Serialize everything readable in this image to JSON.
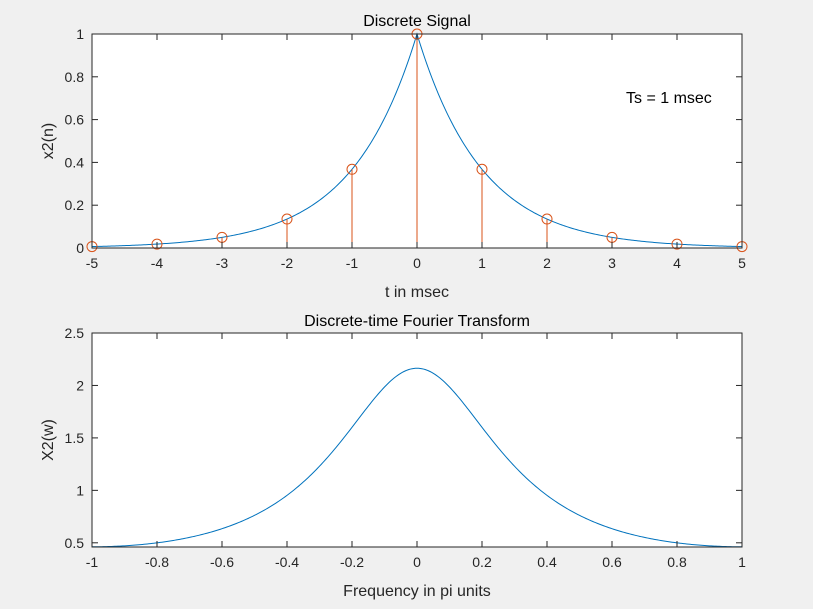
{
  "chart_data": [
    {
      "type": "line",
      "title": "Discrete Signal",
      "xlabel": "t in msec",
      "ylabel": "x2(n)",
      "annotation": "Ts = 1 msec",
      "xlim": [
        -5,
        5
      ],
      "ylim": [
        0,
        1
      ],
      "xticks": [
        "-5",
        "-4",
        "-3",
        "-2",
        "-1",
        "0",
        "1",
        "2",
        "3",
        "4",
        "5"
      ],
      "yticks": [
        "0",
        "0.2",
        "0.4",
        "0.6",
        "0.8",
        "1"
      ],
      "grid": false,
      "series": [
        {
          "style": "line",
          "color": "#0072bd",
          "x": [
            -5,
            -4.5,
            -4,
            -3.5,
            -3,
            -2.5,
            -2,
            -1.5,
            -1,
            -0.75,
            -0.5,
            -0.25,
            0,
            0.25,
            0.5,
            0.75,
            1,
            1.5,
            2,
            2.5,
            3,
            3.5,
            4,
            4.5,
            5
          ],
          "y": [
            0.0067,
            0.0111,
            0.0183,
            0.0302,
            0.0498,
            0.0821,
            0.1353,
            0.2231,
            0.3679,
            0.4724,
            0.6065,
            0.7788,
            1.0,
            0.7788,
            0.6065,
            0.4724,
            0.3679,
            0.2231,
            0.1353,
            0.0821,
            0.0498,
            0.0302,
            0.0183,
            0.0111,
            0.0067
          ]
        },
        {
          "style": "stem",
          "color": "#d95319",
          "x": [
            -5,
            -4,
            -3,
            -2,
            -1,
            0,
            1,
            2,
            3,
            4,
            5
          ],
          "y": [
            0.0067,
            0.0183,
            0.0498,
            0.1353,
            0.3679,
            1.0,
            0.3679,
            0.1353,
            0.0498,
            0.0183,
            0.0067
          ]
        }
      ]
    },
    {
      "type": "line",
      "title": "Discrete-time Fourier Transform",
      "xlabel": "Frequency in pi units",
      "ylabel": "X2(w)",
      "xlim": [
        -1,
        1
      ],
      "ylim": [
        0.46,
        2.5
      ],
      "xticks": [
        "-1",
        "-0.8",
        "-0.6",
        "-0.4",
        "-0.2",
        "0",
        "0.2",
        "0.4",
        "0.6",
        "0.8",
        "1"
      ],
      "yticks": [
        "0.5",
        "1",
        "1.5",
        "2",
        "2.5"
      ],
      "ytick_values": [
        0.5,
        1,
        1.5,
        2,
        2.5
      ],
      "grid": false,
      "series": [
        {
          "style": "line",
          "color": "#0072bd",
          "x": [
            -1,
            -0.9,
            -0.8,
            -0.7,
            -0.6,
            -0.5,
            -0.4,
            -0.3,
            -0.2,
            -0.1,
            0,
            0.1,
            0.2,
            0.3,
            0.4,
            0.5,
            0.6,
            0.7,
            0.8,
            0.9,
            1
          ],
          "y": [
            0.466,
            0.479,
            0.522,
            0.598,
            0.715,
            0.882,
            1.109,
            1.396,
            1.713,
            1.999,
            2.164,
            1.999,
            1.713,
            1.396,
            1.109,
            0.882,
            0.715,
            0.598,
            0.522,
            0.479,
            0.466
          ]
        }
      ]
    }
  ]
}
